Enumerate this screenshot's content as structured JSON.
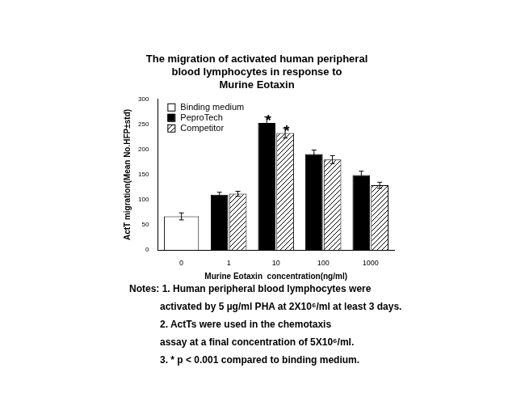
{
  "chart_data": {
    "type": "bar",
    "title": [
      "The migration of activated human peripheral",
      "blood lymphocytes in response to",
      "Murine Eotaxin"
    ],
    "x_label": "Murine Eotaxin  concentration(ng/ml)",
    "y_label": "ActT migration(Mean No.HFP±std)",
    "categories": [
      "0",
      "1",
      "10",
      "100",
      "1000"
    ],
    "series": [
      {
        "name": "Binding medium",
        "color": "#ffffff",
        "values": [
          67,
          null,
          null,
          null,
          null
        ],
        "errors": [
          7,
          null,
          null,
          null,
          null
        ]
      },
      {
        "name": "PeproTech",
        "color": "#000000",
        "values": [
          null,
          110,
          253,
          191,
          149
        ],
        "errors": [
          null,
          5,
          12,
          8,
          8
        ]
      },
      {
        "name": "Competitor",
        "color": "#000000",
        "values": [
          null,
          112,
          233,
          180,
          129
        ],
        "errors": [
          null,
          5,
          10,
          8,
          6
        ]
      }
    ],
    "ylim": [
      0,
      300
    ],
    "yticks": [
      0,
      50,
      100,
      150,
      200,
      250,
      300
    ],
    "grid": false,
    "legend": "upper left",
    "annotations": [
      {
        "text": "*",
        "category": "10",
        "series": "PeproTech"
      },
      {
        "text": "*",
        "category": "10",
        "series": "Competitor"
      }
    ],
    "notes": [
      "Notes: 1. Human peripheral blood lymphocytes were",
      "activated by 5 µg/ml PHA at 2X10⁶/ml at least 3 days.",
      "2. ActTs were used in the chemotaxis",
      "assay at a final concentration of 5X10⁶/ml.",
      "3. * p < 0.001 compared to binding medium."
    ]
  }
}
